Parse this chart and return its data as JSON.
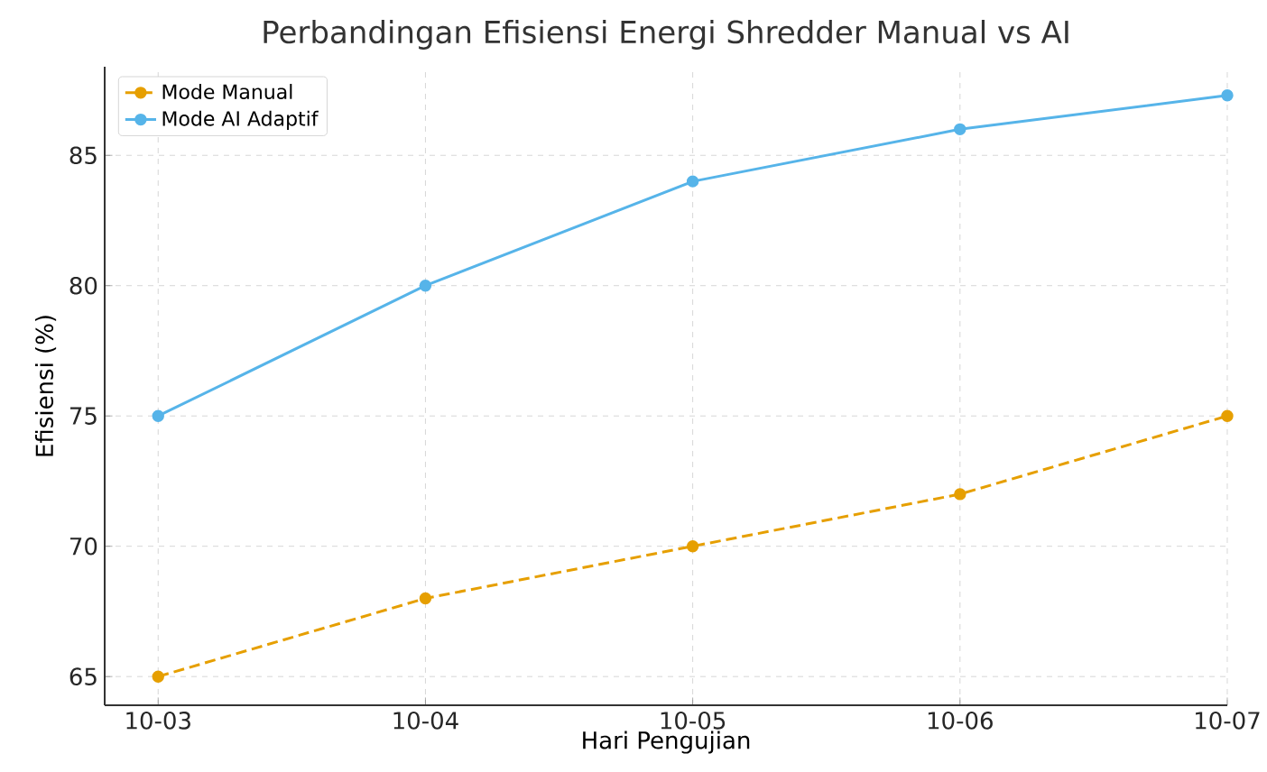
{
  "chart_data": {
    "type": "line",
    "title": "Perbandingan Efisiensi Energi Shredder Manual vs AI",
    "xlabel": "Hari Pengujian",
    "ylabel": "Efisiensi (%)",
    "categories": [
      "10-03",
      "10-04",
      "10-05",
      "10-06",
      "10-07"
    ],
    "series": [
      {
        "name": "Mode Manual",
        "color": "#e69f00",
        "line_style": "dashed",
        "values": [
          65,
          68,
          70,
          72,
          75
        ]
      },
      {
        "name": "Mode AI Adaptif",
        "color": "#56b4e9",
        "line_style": "solid",
        "values": [
          75,
          80,
          84,
          86,
          87.3
        ]
      }
    ],
    "ylim": [
      63.9,
      88.4
    ],
    "yticks": [
      65,
      70,
      75,
      80,
      85
    ],
    "grid": true,
    "legend": "top left",
    "marker": "circle"
  }
}
